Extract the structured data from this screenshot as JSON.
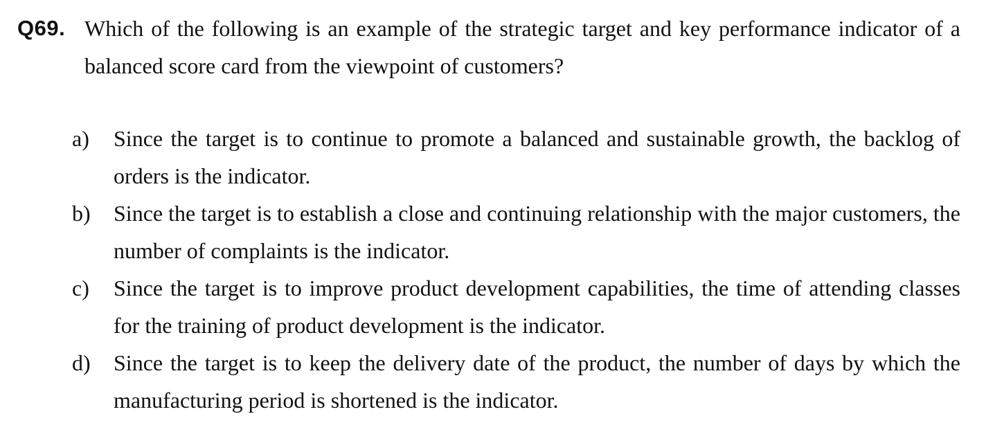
{
  "question": {
    "number": "Q69.",
    "text": "Which of the following is an example of the strategic target and key performance indicator of a balanced score card from the viewpoint of customers?"
  },
  "options": [
    {
      "label": "a)",
      "text": "Since the target is to continue to promote a balanced and sustainable growth, the backlog of orders is the indicator."
    },
    {
      "label": "b)",
      "text": "Since the target is to establish a close and continuing relationship with the major customers, the number of complaints is the indicator."
    },
    {
      "label": "c)",
      "text": "Since the target is to improve product development capabilities, the time of attending classes for the training of product development is the indicator."
    },
    {
      "label": "d)",
      "text": "Since the target is to keep the delivery date of the product, the number of days by which the manufacturing period is shortened is the indicator."
    }
  ]
}
